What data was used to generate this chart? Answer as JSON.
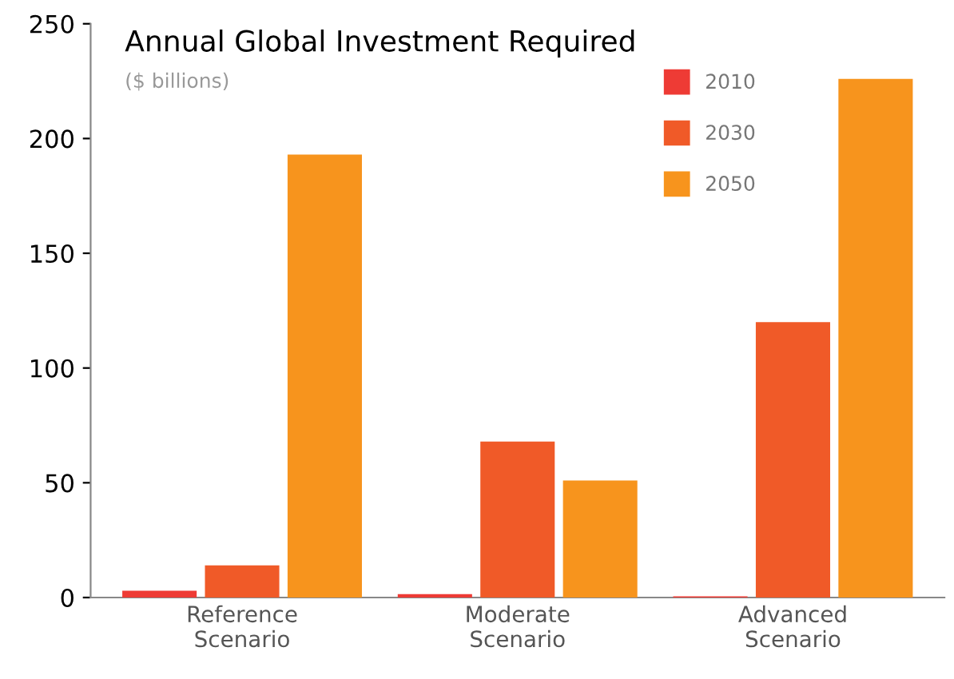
{
  "chart_data": {
    "type": "bar",
    "title": "Annual Global Investment Required",
    "subtitle": "($ billions)",
    "categories": [
      "Reference\nScenario",
      "Moderate\nScenario",
      "Advanced\nScenario"
    ],
    "series": [
      {
        "name": "2010",
        "color": "#ee3b35",
        "values": [
          3,
          1.5,
          0.5
        ]
      },
      {
        "name": "2030",
        "color": "#f05a28",
        "values": [
          14,
          68,
          120
        ]
      },
      {
        "name": "2050",
        "color": "#f7941d",
        "values": [
          193,
          51,
          226
        ]
      }
    ],
    "ylim": [
      0,
      250
    ],
    "yticks": [
      0,
      50,
      100,
      150,
      200,
      250
    ],
    "grid": false,
    "legend": "top right"
  }
}
